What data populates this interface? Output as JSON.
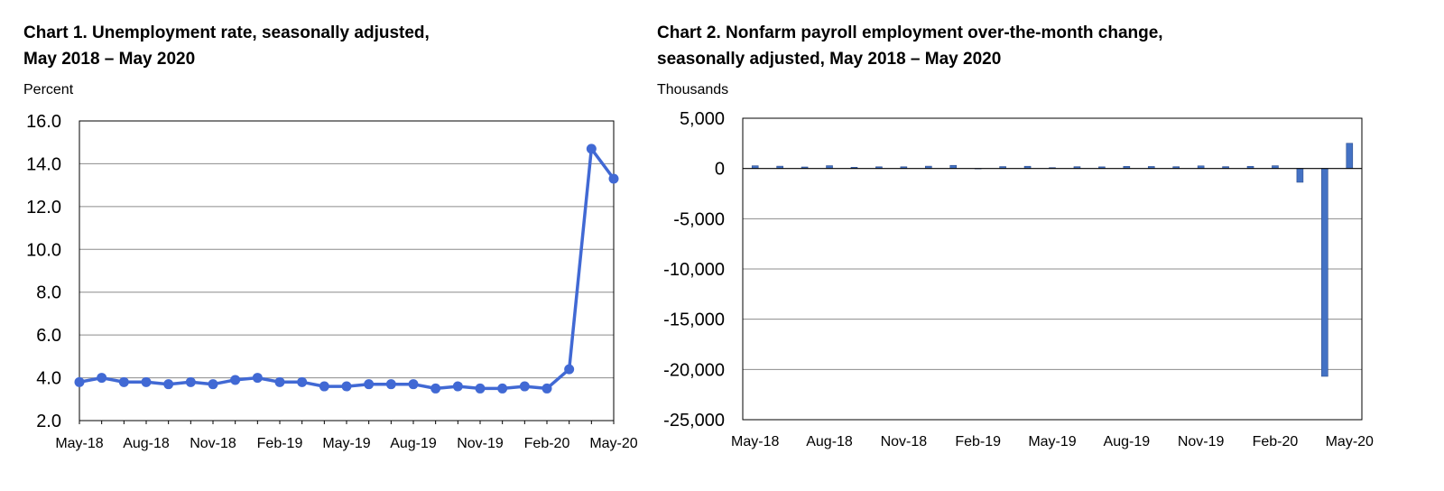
{
  "chart_data": [
    {
      "type": "line",
      "title_lines": [
        "Chart 1. Unemployment rate, seasonally adjusted,",
        "May 2018 – May 2020"
      ],
      "ylabel": "Percent",
      "xlabel": "",
      "ylim": [
        2.0,
        16.0
      ],
      "yticks": [
        "16.0",
        "14.0",
        "12.0",
        "10.0",
        "8.0",
        "6.0",
        "4.0",
        "2.0"
      ],
      "ytick_values": [
        16,
        14,
        12,
        10,
        8,
        6,
        4,
        2
      ],
      "x": [
        "May-18",
        "Jun-18",
        "Jul-18",
        "Aug-18",
        "Sep-18",
        "Oct-18",
        "Nov-18",
        "Dec-18",
        "Jan-19",
        "Feb-19",
        "Mar-19",
        "Apr-19",
        "May-19",
        "Jun-19",
        "Jul-19",
        "Aug-19",
        "Sep-19",
        "Oct-19",
        "Nov-19",
        "Dec-19",
        "Jan-20",
        "Feb-20",
        "Mar-20",
        "Apr-20",
        "May-20"
      ],
      "xtick_labels": [
        "May-18",
        "Aug-18",
        "Nov-18",
        "Feb-19",
        "May-19",
        "Aug-19",
        "Nov-19",
        "Feb-20",
        "May-20"
      ],
      "series": [
        {
          "values": [
            3.8,
            4.0,
            3.8,
            3.8,
            3.7,
            3.8,
            3.7,
            3.9,
            4.0,
            3.8,
            3.8,
            3.6,
            3.6,
            3.7,
            3.7,
            3.7,
            3.5,
            3.6,
            3.5,
            3.5,
            3.6,
            3.5,
            4.4,
            14.7,
            13.3
          ]
        }
      ],
      "grid": true,
      "legend": "none",
      "color": "#4169d4"
    },
    {
      "type": "bar",
      "title_lines": [
        "Chart 2. Nonfarm payroll employment over-the-month change,",
        "seasonally adjusted, May 2018 – May 2020"
      ],
      "ylabel": "Thousands",
      "xlabel": "",
      "ylim": [
        -25000,
        5000
      ],
      "yticks": [
        "5,000",
        "0",
        "-5,000",
        "-10,000",
        "-15,000",
        "-20,000",
        "-25,000"
      ],
      "ytick_values": [
        5000,
        0,
        -5000,
        -10000,
        -15000,
        -20000,
        -25000
      ],
      "categories": [
        "May-18",
        "Jun-18",
        "Jul-18",
        "Aug-18",
        "Sep-18",
        "Oct-18",
        "Nov-18",
        "Dec-18",
        "Jan-19",
        "Feb-19",
        "Mar-19",
        "Apr-19",
        "May-19",
        "Jun-19",
        "Jul-19",
        "Aug-19",
        "Sep-19",
        "Oct-19",
        "Nov-19",
        "Dec-19",
        "Jan-20",
        "Feb-20",
        "Mar-20",
        "Apr-20",
        "May-20"
      ],
      "xtick_labels": [
        "May-18",
        "Aug-18",
        "Nov-18",
        "Feb-19",
        "May-19",
        "Aug-19",
        "Nov-19",
        "Feb-20",
        "May-20"
      ],
      "series": [
        {
          "values": [
            270,
            230,
            150,
            280,
            120,
            170,
            170,
            230,
            310,
            1,
            190,
            220,
            85,
            180,
            165,
            210,
            200,
            180,
            260,
            185,
            215,
            275,
            -1373,
            -20687,
            2509
          ]
        }
      ],
      "grid": true,
      "legend": "none",
      "color": "#4472c4"
    }
  ]
}
